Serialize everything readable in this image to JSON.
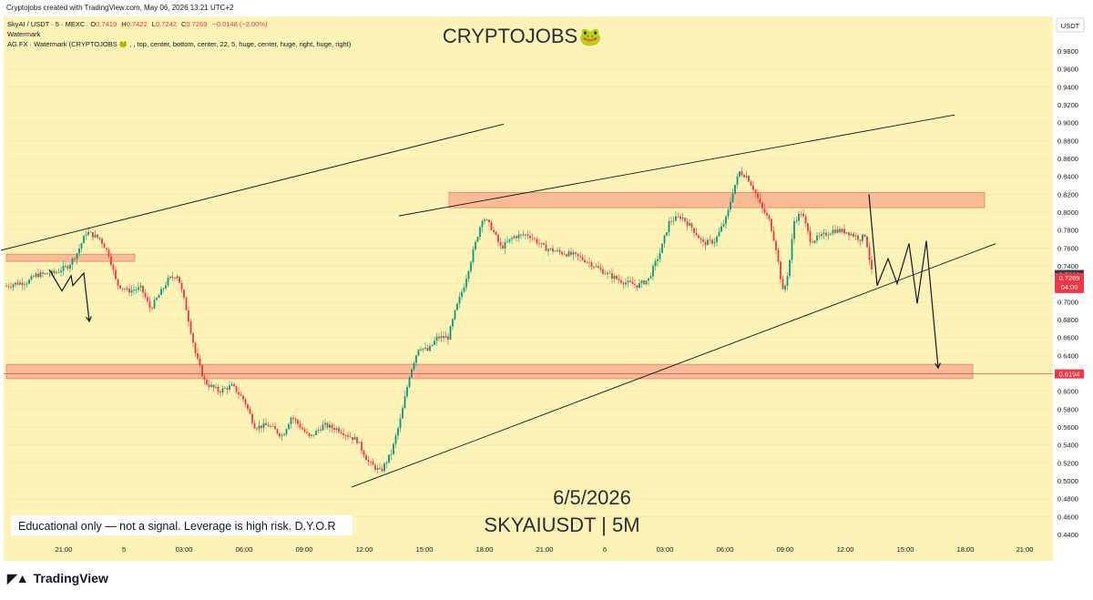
{
  "header": {
    "attribution": "Cryptojobs created with TradingView.com, May 06, 2026 13:21 UTC+2",
    "symbol_line": "SkyAI / USDT · 5 · MEXC",
    "ohlc": [
      {
        "k": "O",
        "v": "0.7419"
      },
      {
        "k": "H",
        "v": "0.7422"
      },
      {
        "k": "L",
        "v": "0.7242"
      },
      {
        "k": "C",
        "v": "0.7269"
      }
    ],
    "change": "−0.0148 (−2.00%)",
    "indicator_1": "Watermark",
    "indicator_2": "AG FX · Watermark (CRYPTOJOBS 🐸 , , top, center, bottom, center, 22, 5, huge, center, huge, right, huge, right)"
  },
  "watermark": {
    "title": "CRYPTOJOBS",
    "emoji": "🐸"
  },
  "date_text": "6/5/2026",
  "pair_text": "SKYAIUSDT | 5M",
  "disclaimer": "Educational only — not a signal. Leverage is high risk. D.Y.O.R",
  "currency": "USDT",
  "price_badges": [
    {
      "label": "0.7303",
      "color": "#363a45"
    },
    {
      "label": "0.7269",
      "sub": "04:00",
      "color": "#f23645"
    },
    {
      "label": "0.6194",
      "color": "#f23645"
    }
  ],
  "brand": "TradingView",
  "colors": {
    "background": "#fdf3b7",
    "up": "#089981",
    "down": "#f23645",
    "zone": "#f7a98b"
  },
  "chart_data": {
    "type": "candlestick",
    "y_ticks": [
      "0.9800",
      "0.9600",
      "0.9400",
      "0.9200",
      "0.9000",
      "0.8800",
      "0.8600",
      "0.8400",
      "0.8200",
      "0.8000",
      "0.7800",
      "0.7600",
      "0.7400",
      "0.7200",
      "0.7000",
      "0.6800",
      "0.6600",
      "0.6400",
      "0.6200",
      "0.6000",
      "0.5800",
      "0.5600",
      "0.5400",
      "0.5200",
      "0.5000",
      "0.4800",
      "0.4600",
      "0.4400"
    ],
    "x_ticks": [
      "21:00",
      "5",
      "03:00",
      "06:00",
      "09:00",
      "12:00",
      "15:00",
      "18:00",
      "21:00",
      "6",
      "03:00",
      "06:00",
      "09:00",
      "12:00",
      "15:00",
      "18:00",
      "21:00"
    ],
    "ylim": [
      0.44,
      0.99
    ],
    "price_path": [
      [
        0,
        0.715
      ],
      [
        15,
        0.72
      ],
      [
        30,
        0.722
      ],
      [
        40,
        0.73
      ],
      [
        60,
        0.732
      ],
      [
        75,
        0.74
      ],
      [
        85,
        0.755
      ],
      [
        95,
        0.778
      ],
      [
        110,
        0.77
      ],
      [
        120,
        0.752
      ],
      [
        128,
        0.72
      ],
      [
        140,
        0.712
      ],
      [
        155,
        0.715
      ],
      [
        165,
        0.692
      ],
      [
        175,
        0.708
      ],
      [
        185,
        0.725
      ],
      [
        195,
        0.73
      ],
      [
        205,
        0.69
      ],
      [
        215,
        0.64
      ],
      [
        225,
        0.61
      ],
      [
        240,
        0.6
      ],
      [
        255,
        0.606
      ],
      [
        268,
        0.59
      ],
      [
        280,
        0.56
      ],
      [
        295,
        0.562
      ],
      [
        310,
        0.55
      ],
      [
        320,
        0.572
      ],
      [
        330,
        0.56
      ],
      [
        340,
        0.548
      ],
      [
        355,
        0.562
      ],
      [
        370,
        0.558
      ],
      [
        380,
        0.552
      ],
      [
        392,
        0.545
      ],
      [
        405,
        0.52
      ],
      [
        418,
        0.51
      ],
      [
        430,
        0.532
      ],
      [
        440,
        0.57
      ],
      [
        450,
        0.62
      ],
      [
        460,
        0.65
      ],
      [
        470,
        0.645
      ],
      [
        480,
        0.66
      ],
      [
        492,
        0.66
      ],
      [
        500,
        0.69
      ],
      [
        510,
        0.72
      ],
      [
        520,
        0.758
      ],
      [
        530,
        0.795
      ],
      [
        540,
        0.782
      ],
      [
        550,
        0.76
      ],
      [
        565,
        0.773
      ],
      [
        580,
        0.775
      ],
      [
        598,
        0.76
      ],
      [
        615,
        0.755
      ],
      [
        630,
        0.752
      ],
      [
        645,
        0.745
      ],
      [
        660,
        0.735
      ],
      [
        672,
        0.728
      ],
      [
        685,
        0.722
      ],
      [
        700,
        0.718
      ],
      [
        712,
        0.725
      ],
      [
        725,
        0.756
      ],
      [
        735,
        0.79
      ],
      [
        748,
        0.795
      ],
      [
        760,
        0.782
      ],
      [
        772,
        0.765
      ],
      [
        785,
        0.768
      ],
      [
        798,
        0.795
      ],
      [
        805,
        0.825
      ],
      [
        812,
        0.845
      ],
      [
        820,
        0.84
      ],
      [
        828,
        0.825
      ],
      [
        836,
        0.805
      ],
      [
        845,
        0.79
      ],
      [
        852,
        0.76
      ],
      [
        860,
        0.708
      ],
      [
        866,
        0.738
      ],
      [
        872,
        0.79
      ],
      [
        880,
        0.8
      ],
      [
        890,
        0.768
      ],
      [
        900,
        0.772
      ],
      [
        915,
        0.78
      ],
      [
        930,
        0.778
      ],
      [
        945,
        0.77
      ],
      [
        950,
        0.775
      ],
      [
        958,
        0.727
      ]
    ],
    "lines": [
      {
        "name": "channel-upper-left",
        "points": [
          [
            1,
            0.7574
          ],
          [
            553,
            0.8983
          ]
        ]
      },
      {
        "name": "channel-upper-right",
        "points": [
          [
            438,
            0.7958
          ],
          [
            1048,
            0.9086
          ]
        ]
      },
      {
        "name": "channel-lower",
        "points": [
          [
            386,
            0.4928
          ],
          [
            1093,
            0.7647
          ]
        ]
      }
    ],
    "zones": [
      {
        "name": "supply-zone-left",
        "x0": 7,
        "x1": 148,
        "y0": 0.745,
        "y1": 0.753
      },
      {
        "name": "supply-zone-top",
        "x0": 493,
        "x1": 1081,
        "y0": 0.805,
        "y1": 0.822
      },
      {
        "name": "support-zone",
        "x0": 7,
        "x1": 1068,
        "y0": 0.614,
        "y1": 0.63
      }
    ],
    "horizontal_line": 0.6194,
    "projections": [
      {
        "name": "projection-left",
        "points": [
          [
            54,
            0.736
          ],
          [
            68,
            0.712
          ],
          [
            78,
            0.729
          ],
          [
            80,
            0.718
          ],
          [
            92,
            0.732
          ],
          [
            98,
            0.678
          ]
        ]
      },
      {
        "name": "projection-right",
        "points": [
          [
            954,
            0.82
          ],
          [
            963,
            0.718
          ],
          [
            975,
            0.748
          ],
          [
            985,
            0.72
          ],
          [
            998,
            0.765
          ],
          [
            1007,
            0.698
          ],
          [
            1017,
            0.768
          ],
          [
            1030,
            0.626
          ]
        ]
      }
    ]
  }
}
